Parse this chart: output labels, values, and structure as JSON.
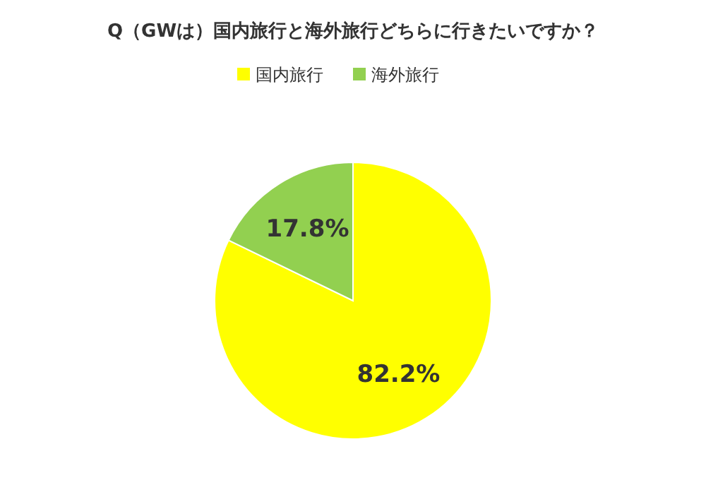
{
  "chart_data": {
    "type": "pie",
    "title": "Q（GWは）国内旅行と海外旅行どちらに行きたいですか？",
    "categories": [
      "国内旅行",
      "海外旅行"
    ],
    "values": [
      82.2,
      17.8
    ],
    "colors": [
      "#ffff00",
      "#92d050"
    ],
    "value_labels": [
      "82.2%",
      "17.8%"
    ],
    "legend": "top"
  }
}
